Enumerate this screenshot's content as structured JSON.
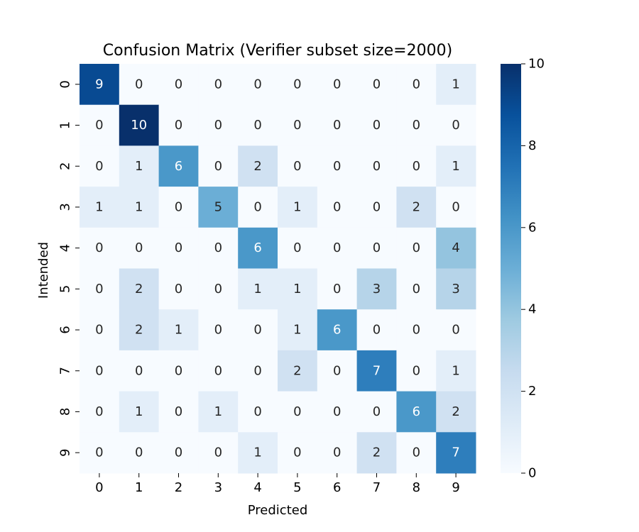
{
  "chart_data": {
    "type": "heatmap",
    "title": "Confusion Matrix (Verifier subset size=2000)",
    "xlabel": "Predicted",
    "ylabel": "Intended",
    "x_categories": [
      "0",
      "1",
      "2",
      "3",
      "4",
      "5",
      "6",
      "7",
      "8",
      "9"
    ],
    "y_categories": [
      "0",
      "1",
      "2",
      "3",
      "4",
      "5",
      "6",
      "7",
      "8",
      "9"
    ],
    "values": [
      [
        9,
        0,
        0,
        0,
        0,
        0,
        0,
        0,
        0,
        1
      ],
      [
        0,
        10,
        0,
        0,
        0,
        0,
        0,
        0,
        0,
        0
      ],
      [
        0,
        1,
        6,
        0,
        2,
        0,
        0,
        0,
        0,
        1
      ],
      [
        1,
        1,
        0,
        5,
        0,
        1,
        0,
        0,
        2,
        0
      ],
      [
        0,
        0,
        0,
        0,
        6,
        0,
        0,
        0,
        0,
        4
      ],
      [
        0,
        2,
        0,
        0,
        1,
        1,
        0,
        3,
        0,
        3
      ],
      [
        0,
        2,
        1,
        0,
        0,
        1,
        6,
        0,
        0,
        0
      ],
      [
        0,
        0,
        0,
        0,
        0,
        2,
        0,
        7,
        0,
        1
      ],
      [
        0,
        1,
        0,
        1,
        0,
        0,
        0,
        0,
        6,
        2
      ],
      [
        0,
        0,
        0,
        0,
        1,
        0,
        0,
        2,
        0,
        7
      ]
    ],
    "colormap": "Blues",
    "colorbar": {
      "range": [
        0,
        10
      ],
      "ticks": [
        "0",
        "2",
        "4",
        "6",
        "8",
        "10"
      ]
    },
    "grid": false
  }
}
